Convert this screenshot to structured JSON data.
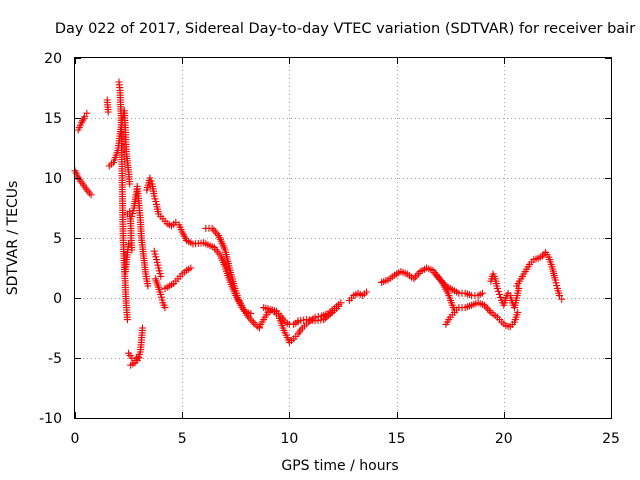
{
  "chart_data": {
    "type": "scatter",
    "title": "Day 022 of 2017, Sidereal Day-to-day VTEC variation (SDTVAR) for receiver bair",
    "xlabel": "GPS time / hours",
    "ylabel": "SDTVAR / TECUs",
    "xlim": [
      0,
      25
    ],
    "ylim": [
      -10,
      20
    ],
    "xticks": [
      0,
      5,
      10,
      15,
      20,
      25
    ],
    "yticks": [
      -10,
      -5,
      0,
      5,
      10,
      15,
      20
    ],
    "grid": true,
    "marker": "+",
    "color": "#ff0000",
    "series": [
      {
        "name": "SDTVAR",
        "segments": [
          [
            [
              0.0,
              10.6
            ],
            [
              0.2,
              9.9
            ],
            [
              0.4,
              9.4
            ],
            [
              0.6,
              8.9
            ],
            [
              0.75,
              8.6
            ]
          ],
          [
            [
              0.15,
              14.0
            ],
            [
              0.3,
              14.6
            ],
            [
              0.45,
              15.1
            ],
            [
              0.55,
              15.4
            ]
          ],
          [
            [
              1.5,
              16.5
            ],
            [
              1.55,
              15.5
            ]
          ],
          [
            [
              1.6,
              11.0
            ],
            [
              1.8,
              11.3
            ],
            [
              2.0,
              12.3
            ],
            [
              2.1,
              13.5
            ],
            [
              2.2,
              14.8
            ],
            [
              2.3,
              15.6
            ],
            [
              2.35,
              14.0
            ],
            [
              2.4,
              12.0
            ],
            [
              2.5,
              10.5
            ],
            [
              2.55,
              9.5
            ]
          ],
          [
            [
              2.05,
              18.0
            ],
            [
              2.1,
              17.3
            ],
            [
              2.12,
              16.5
            ],
            [
              2.15,
              15.2
            ],
            [
              2.18,
              12.5
            ],
            [
              2.2,
              10.0
            ],
            [
              2.22,
              7.5
            ],
            [
              2.25,
              5.0
            ],
            [
              2.28,
              3.5
            ],
            [
              2.32,
              2.0
            ],
            [
              2.36,
              0.5
            ],
            [
              2.4,
              -0.8
            ],
            [
              2.45,
              -1.8
            ]
          ],
          [
            [
              2.45,
              7.0
            ],
            [
              2.55,
              7.0
            ],
            [
              2.65,
              6.8
            ],
            [
              2.75,
              7.5
            ],
            [
              2.85,
              8.6
            ],
            [
              2.9,
              9.3
            ],
            [
              2.95,
              8.5
            ],
            [
              3.0,
              7.5
            ],
            [
              3.05,
              6.5
            ],
            [
              3.1,
              5.0
            ],
            [
              3.2,
              3.5
            ],
            [
              3.3,
              2.0
            ],
            [
              3.4,
              1.0
            ]
          ],
          [
            [
              2.5,
              4.5
            ],
            [
              2.45,
              3.8
            ],
            [
              2.4,
              3.0
            ],
            [
              2.35,
              2.2
            ]
          ],
          [
            [
              2.55,
              7.2
            ],
            [
              2.6,
              6.2
            ],
            [
              2.62,
              5.0
            ],
            [
              2.65,
              4.0
            ]
          ],
          [
            [
              2.5,
              -4.6
            ],
            [
              2.65,
              -5.0
            ],
            [
              2.8,
              -5.2
            ],
            [
              2.95,
              -4.9
            ],
            [
              3.05,
              -4.5
            ],
            [
              3.1,
              -3.5
            ],
            [
              3.15,
              -2.5
            ]
          ],
          [
            [
              2.6,
              -5.6
            ],
            [
              2.8,
              -5.4
            ],
            [
              3.0,
              -5.0
            ]
          ],
          [
            [
              3.35,
              9.0
            ],
            [
              3.5,
              10.0
            ],
            [
              3.6,
              9.5
            ],
            [
              3.7,
              8.5
            ],
            [
              3.8,
              7.8
            ],
            [
              3.9,
              7.0
            ],
            [
              4.1,
              6.6
            ],
            [
              4.3,
              6.2
            ],
            [
              4.5,
              6.0
            ],
            [
              4.7,
              6.3
            ],
            [
              4.85,
              6.1
            ],
            [
              5.0,
              5.5
            ],
            [
              5.2,
              4.8
            ],
            [
              5.5,
              4.5
            ],
            [
              6.0,
              4.6
            ],
            [
              6.5,
              4.2
            ],
            [
              6.8,
              3.5
            ],
            [
              7.0,
              2.6
            ],
            [
              7.2,
              1.5
            ],
            [
              7.5,
              0.2
            ],
            [
              7.8,
              -0.8
            ],
            [
              8.1,
              -1.6
            ],
            [
              8.4,
              -2.2
            ],
            [
              8.6,
              -2.5
            ]
          ],
          [
            [
              3.7,
              3.9
            ],
            [
              3.8,
              3.2
            ],
            [
              3.9,
              2.5
            ],
            [
              4.0,
              1.8
            ]
          ],
          [
            [
              3.75,
              1.6
            ],
            [
              3.9,
              0.9
            ],
            [
              4.0,
              0.3
            ],
            [
              4.1,
              -0.4
            ],
            [
              4.2,
              -0.8
            ]
          ],
          [
            [
              4.2,
              0.8
            ],
            [
              4.4,
              1.0
            ],
            [
              4.6,
              1.2
            ],
            [
              4.8,
              1.6
            ],
            [
              5.0,
              2.0
            ],
            [
              5.2,
              2.3
            ],
            [
              5.4,
              2.5
            ]
          ],
          [
            [
              6.1,
              5.8
            ],
            [
              6.4,
              5.8
            ],
            [
              6.7,
              5.2
            ],
            [
              7.0,
              4.0
            ],
            [
              7.2,
              2.5
            ],
            [
              7.4,
              1.2
            ],
            [
              7.6,
              0.0
            ],
            [
              7.8,
              -0.8
            ],
            [
              8.0,
              -1.2
            ],
            [
              8.2,
              -1.3
            ]
          ],
          [
            [
              8.6,
              -2.4
            ],
            [
              8.8,
              -1.8
            ],
            [
              9.0,
              -1.2
            ],
            [
              9.2,
              -1.0
            ],
            [
              9.4,
              -1.1
            ],
            [
              9.6,
              -1.5
            ],
            [
              9.8,
              -2.0
            ],
            [
              10.0,
              -2.2
            ],
            [
              10.2,
              -2.2
            ],
            [
              10.4,
              -2.0
            ]
          ],
          [
            [
              8.8,
              -0.8
            ],
            [
              9.2,
              -1.0
            ],
            [
              9.5,
              -1.5
            ],
            [
              9.7,
              -2.5
            ],
            [
              9.9,
              -3.3
            ],
            [
              10.0,
              -3.7
            ],
            [
              10.2,
              -3.4
            ],
            [
              10.4,
              -3.0
            ],
            [
              10.6,
              -2.5
            ],
            [
              10.9,
              -2.0
            ],
            [
              11.2,
              -1.6
            ],
            [
              11.5,
              -1.5
            ],
            [
              11.8,
              -1.3
            ],
            [
              12.0,
              -1.0
            ],
            [
              12.2,
              -0.7
            ],
            [
              12.4,
              -0.4
            ]
          ],
          [
            [
              10.4,
              -1.9
            ],
            [
              10.8,
              -1.8
            ],
            [
              11.2,
              -1.9
            ],
            [
              11.6,
              -1.8
            ],
            [
              12.0,
              -1.2
            ],
            [
              12.3,
              -0.7
            ]
          ],
          [
            [
              12.8,
              -0.2
            ],
            [
              13.0,
              0.2
            ],
            [
              13.2,
              0.4
            ],
            [
              13.4,
              0.2
            ],
            [
              13.6,
              0.5
            ]
          ],
          [
            [
              14.3,
              1.3
            ],
            [
              14.6,
              1.5
            ],
            [
              14.9,
              1.9
            ],
            [
              15.2,
              2.2
            ],
            [
              15.5,
              2.0
            ],
            [
              15.8,
              1.6
            ],
            [
              16.1,
              2.2
            ],
            [
              16.4,
              2.5
            ],
            [
              16.7,
              2.3
            ],
            [
              17.0,
              1.6
            ],
            [
              17.3,
              1.0
            ],
            [
              17.6,
              0.7
            ],
            [
              17.9,
              0.4
            ],
            [
              18.2,
              0.4
            ],
            [
              18.5,
              0.2
            ],
            [
              18.8,
              0.2
            ],
            [
              19.0,
              0.4
            ]
          ],
          [
            [
              16.8,
              2.0
            ],
            [
              17.1,
              1.4
            ],
            [
              17.4,
              0.4
            ],
            [
              17.6,
              -0.6
            ],
            [
              17.7,
              -1.0
            ]
          ],
          [
            [
              17.3,
              -2.2
            ],
            [
              17.5,
              -1.6
            ],
            [
              17.7,
              -1.2
            ],
            [
              17.9,
              -0.8
            ],
            [
              18.2,
              -0.8
            ],
            [
              18.5,
              -0.6
            ],
            [
              18.8,
              -0.4
            ],
            [
              19.1,
              -0.6
            ],
            [
              19.4,
              -1.2
            ],
            [
              19.7,
              -1.6
            ],
            [
              19.9,
              -2.0
            ],
            [
              20.1,
              -2.3
            ],
            [
              20.3,
              -2.4
            ],
            [
              20.5,
              -2.0
            ],
            [
              20.65,
              -1.2
            ]
          ],
          [
            [
              19.4,
              1.4
            ],
            [
              19.5,
              2.0
            ],
            [
              19.6,
              1.6
            ],
            [
              19.7,
              0.8
            ],
            [
              19.8,
              0.3
            ],
            [
              19.9,
              -0.2
            ],
            [
              20.0,
              -0.6
            ],
            [
              20.1,
              0.0
            ],
            [
              20.2,
              0.4
            ],
            [
              20.3,
              0.2
            ],
            [
              20.4,
              -0.4
            ],
            [
              20.5,
              -0.8
            ],
            [
              20.6,
              0.0
            ],
            [
              20.7,
              0.8
            ]
          ],
          [
            [
              20.6,
              1.0
            ],
            [
              20.8,
              1.6
            ],
            [
              21.0,
              2.2
            ],
            [
              21.2,
              2.8
            ],
            [
              21.4,
              3.2
            ],
            [
              21.6,
              3.3
            ],
            [
              21.8,
              3.5
            ],
            [
              21.95,
              3.8
            ],
            [
              22.1,
              3.4
            ],
            [
              22.25,
              2.6
            ],
            [
              22.4,
              1.5
            ],
            [
              22.5,
              0.8
            ],
            [
              22.6,
              0.2
            ],
            [
              22.7,
              -0.1
            ]
          ]
        ]
      }
    ]
  }
}
